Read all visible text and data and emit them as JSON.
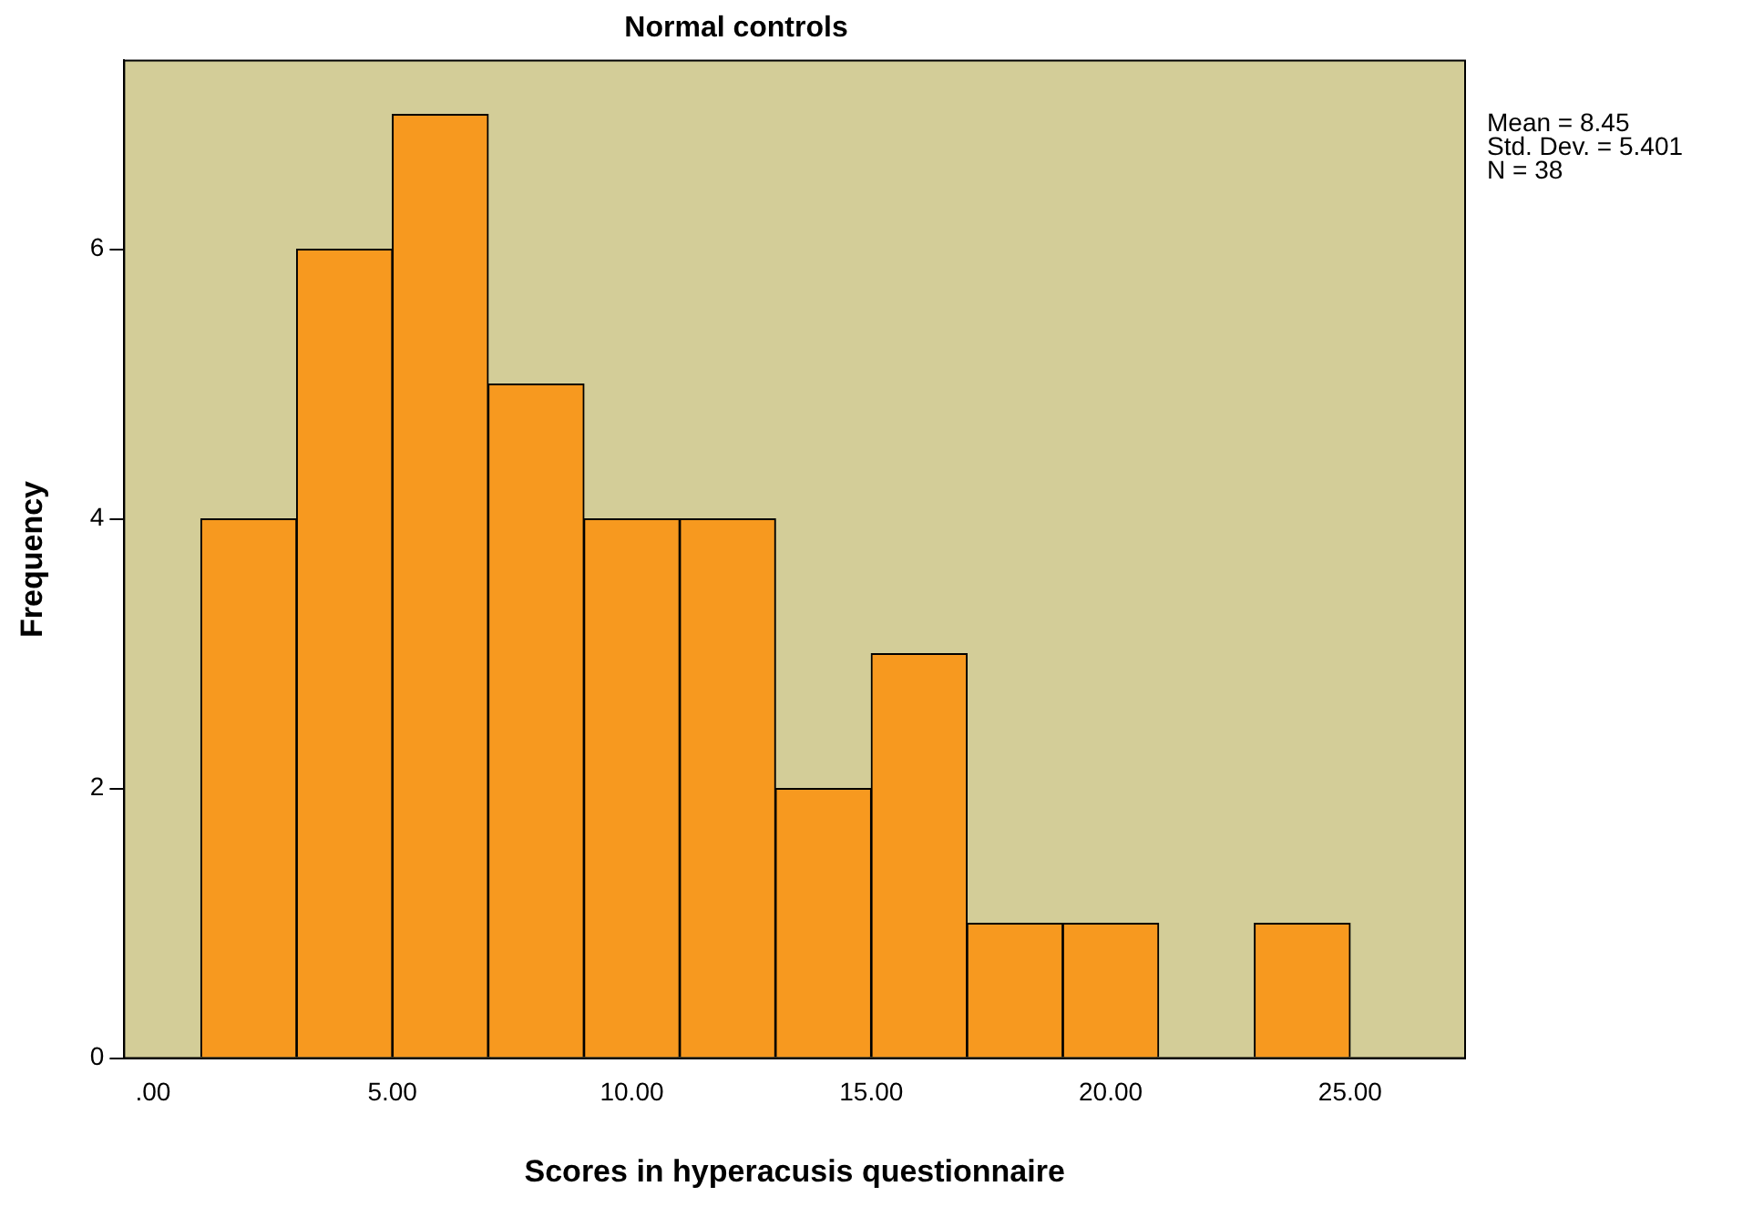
{
  "chart_data": {
    "type": "histogram",
    "title": "Normal controls",
    "xlabel": "Scores in hyperacusis questionnaire",
    "ylabel": "Frequency",
    "bins": [
      1,
      3,
      5,
      7,
      9,
      11,
      13,
      15,
      17,
      19,
      21,
      23,
      25
    ],
    "values": [
      4,
      6,
      7,
      5,
      4,
      4,
      2,
      3,
      1,
      1,
      0,
      1
    ],
    "color": "#f7991f",
    "xlim": [
      -0.6,
      27.4
    ],
    "ylim": [
      0,
      7.4
    ],
    "xticks": [
      {
        "value": 0,
        "label": ".00"
      },
      {
        "value": 5,
        "label": "5.00"
      },
      {
        "value": 10,
        "label": "10.00"
      },
      {
        "value": 15,
        "label": "15.00"
      },
      {
        "value": 20,
        "label": "20.00"
      },
      {
        "value": 25,
        "label": "25.00"
      }
    ],
    "yticks": [
      0,
      2,
      4,
      6
    ],
    "grid": false,
    "annotations": [
      "Mean = 8.45",
      "Std. Dev. = 5.401",
      "N = 38"
    ]
  }
}
